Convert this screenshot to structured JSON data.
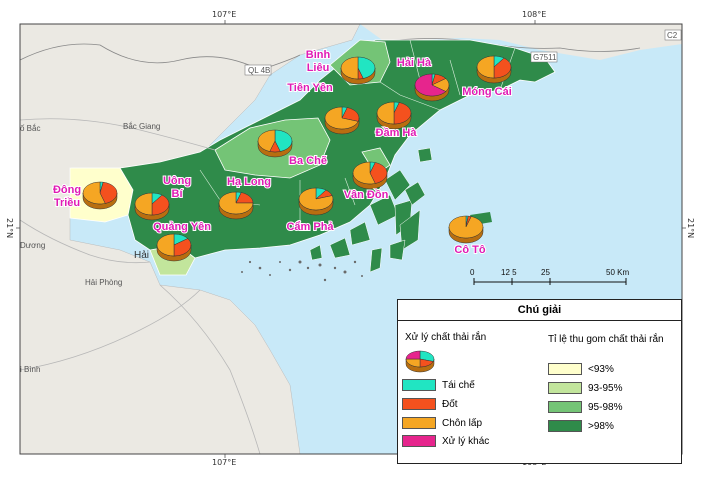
{
  "map": {
    "colors": {
      "sea": "#c8e9f8",
      "land_bg": "#ebe9e3",
      "lt93": "#ffffcc",
      "c93_95": "#c2e59c",
      "c95_98": "#74c476",
      "gt98": "#2f8b4a",
      "recycle": "#21e5c2",
      "burn": "#f4511e",
      "landfill": "#f5a623",
      "other": "#e6258d"
    },
    "coords": {
      "top_left_lon": "107°E",
      "top_right_lon": "108°E",
      "bottom_left_lon": "107°E",
      "bottom_right_lon": "108°E",
      "left_lat": "21°N",
      "right_lat": "21°N"
    },
    "background_labels": {
      "bac_giang_city": "ố Bắc",
      "bac_giang": "Bắc Giang",
      "hai_phong": "Hải Phòng",
      "duong": "Dương",
      "thai_binh": "i Bình",
      "hai": "Hải",
      "ql4b": "QL 4B",
      "g7511": "G7511",
      "c2": "C2"
    },
    "places": [
      {
        "name": "Bình Liêu",
        "lines": [
          "Bình",
          "Liêu"
        ],
        "coverage": "95-98%",
        "recycle": 45,
        "burn": 5,
        "landfill": 50,
        "other": 0
      },
      {
        "name": "Hải Hà",
        "lines": [
          "Hải Hà"
        ],
        "coverage": ">98%",
        "recycle": 3,
        "burn": 12,
        "landfill": 20,
        "other": 65
      },
      {
        "name": "Móng Cái",
        "lines": [
          "Móng Cái"
        ],
        "coverage": ">98%",
        "recycle": 10,
        "burn": 40,
        "landfill": 50,
        "other": 0
      },
      {
        "name": "Tiên Yên",
        "lines": [
          "Tiên Yên"
        ],
        "coverage": ">98%",
        "recycle": 5,
        "burn": 25,
        "landfill": 70,
        "other": 0
      },
      {
        "name": "Đầm Hà",
        "lines": [
          "Đầm Hà"
        ],
        "coverage": ">98%",
        "recycle": 5,
        "burn": 45,
        "landfill": 50,
        "other": 0
      },
      {
        "name": "Ba Chẽ",
        "lines": [
          "Ba Chẽ"
        ],
        "coverage": "95-98%",
        "recycle": 45,
        "burn": 10,
        "landfill": 45,
        "other": 0
      },
      {
        "name": "Đông Triều",
        "lines": [
          "Đông",
          "Triều"
        ],
        "coverage": "<93%",
        "recycle": 3,
        "burn": 42,
        "landfill": 55,
        "other": 0
      },
      {
        "name": "Uông Bí",
        "lines": [
          "Uông",
          "Bí"
        ],
        "coverage": ">98%",
        "recycle": 10,
        "burn": 40,
        "landfill": 50,
        "other": 0
      },
      {
        "name": "Hạ Long",
        "lines": [
          "Hạ Long"
        ],
        "coverage": ">98%",
        "recycle": 5,
        "burn": 20,
        "landfill": 75,
        "other": 0
      },
      {
        "name": "Quảng Yên",
        "lines": [
          "Quảng Yên"
        ],
        "coverage": "93-95%",
        "recycle": 15,
        "burn": 35,
        "landfill": 50,
        "other": 0
      },
      {
        "name": "Cẩm Phả",
        "lines": [
          "Cẩm Phả"
        ],
        "coverage": ">98%",
        "recycle": 10,
        "burn": 10,
        "landfill": 80,
        "other": 0
      },
      {
        "name": "Vân Đồn",
        "lines": [
          "Vân Đồn"
        ],
        "coverage": ">98%",
        "recycle": 5,
        "burn": 40,
        "landfill": 55,
        "other": 0
      },
      {
        "name": "Cô Tô",
        "lines": [
          "Cô Tô"
        ],
        "coverage": "sea",
        "recycle": 2,
        "burn": 3,
        "landfill": 95,
        "other": 0
      }
    ],
    "scale_bar": {
      "ticks": [
        "0",
        "12 5",
        "25",
        "50 Km"
      ]
    }
  },
  "legend": {
    "title": "Chú giải",
    "pie_heading": "Xử lý chất thải rắn",
    "pie_items": [
      {
        "label": "Tái chế",
        "key": "recycle"
      },
      {
        "label": "Đốt",
        "key": "burn"
      },
      {
        "label": "Chôn lấp",
        "key": "landfill"
      },
      {
        "label": "Xử lý khác",
        "key": "other"
      }
    ],
    "choropleth_heading": "Tỉ lệ thu gom chất thải rắn",
    "choropleth_items": [
      {
        "label": "<93%",
        "key": "lt93"
      },
      {
        "label": "93-95%",
        "key": "c93_95"
      },
      {
        "label": "95-98%",
        "key": "c95_98"
      },
      {
        "label": ">98%",
        "key": "gt98"
      }
    ]
  }
}
